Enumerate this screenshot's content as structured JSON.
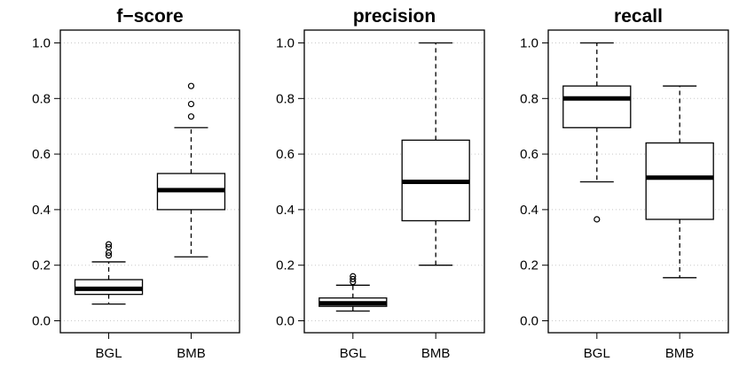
{
  "chart_data": [
    {
      "type": "box",
      "title": "f−score",
      "categories": [
        "BGL",
        "BMB"
      ],
      "ylim": [
        0,
        1
      ],
      "y_ticks": [
        "0.0",
        "0.2",
        "0.4",
        "0.6",
        "0.8",
        "1.0"
      ],
      "grid": true,
      "boxes": [
        {
          "category": "BGL",
          "min": 0.06,
          "q1": 0.095,
          "median": 0.115,
          "q3": 0.148,
          "max": 0.212,
          "outliers": [
            0.235,
            0.245,
            0.265,
            0.275
          ]
        },
        {
          "category": "BMB",
          "min": 0.23,
          "q1": 0.4,
          "median": 0.47,
          "q3": 0.53,
          "max": 0.695,
          "outliers": [
            0.735,
            0.78,
            0.845
          ]
        }
      ]
    },
    {
      "type": "box",
      "title": "precision",
      "categories": [
        "BGL",
        "BMB"
      ],
      "ylim": [
        0,
        1
      ],
      "y_ticks": [
        "0.0",
        "0.2",
        "0.4",
        "0.6",
        "0.8",
        "1.0"
      ],
      "grid": true,
      "boxes": [
        {
          "category": "BGL",
          "min": 0.035,
          "q1": 0.052,
          "median": 0.063,
          "q3": 0.082,
          "max": 0.128,
          "outliers": [
            0.14,
            0.15,
            0.16
          ]
        },
        {
          "category": "BMB",
          "min": 0.2,
          "q1": 0.36,
          "median": 0.5,
          "q3": 0.65,
          "max": 1.0,
          "outliers": []
        }
      ]
    },
    {
      "type": "box",
      "title": "recall",
      "categories": [
        "BGL",
        "BMB"
      ],
      "ylim": [
        0,
        1
      ],
      "y_ticks": [
        "0.0",
        "0.2",
        "0.4",
        "0.6",
        "0.8",
        "1.0"
      ],
      "grid": true,
      "boxes": [
        {
          "category": "BGL",
          "min": 0.5,
          "q1": 0.695,
          "median": 0.8,
          "q3": 0.845,
          "max": 1.0,
          "outliers": [
            0.365
          ]
        },
        {
          "category": "BMB",
          "min": 0.155,
          "q1": 0.365,
          "median": 0.515,
          "q3": 0.64,
          "max": 0.845,
          "outliers": []
        }
      ]
    }
  ]
}
